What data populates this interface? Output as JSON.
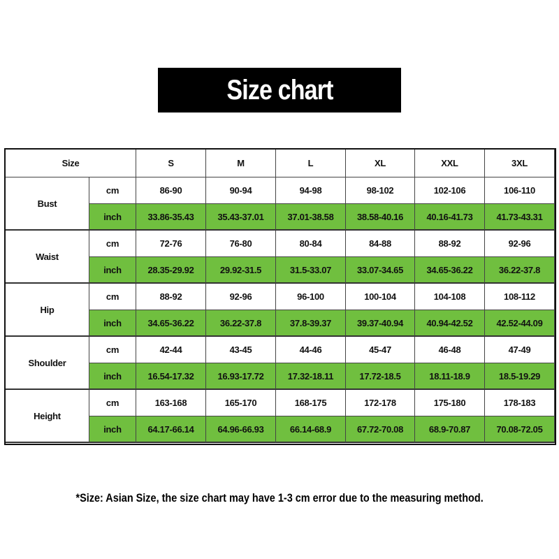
{
  "title": "Size chart",
  "header": {
    "size_label": "Size",
    "sizes": [
      "S",
      "M",
      "L",
      "XL",
      "XXL",
      "3XL"
    ]
  },
  "colors": {
    "inch_row_bg": "#70bf3f",
    "title_bg": "#000000"
  },
  "measurements": [
    {
      "name": "Bust",
      "cm": {
        "unit": "cm",
        "values": [
          "86-90",
          "90-94",
          "94-98",
          "98-102",
          "102-106",
          "106-110"
        ]
      },
      "inch": {
        "unit": "inch",
        "values": [
          "33.86-35.43",
          "35.43-37.01",
          "37.01-38.58",
          "38.58-40.16",
          "40.16-41.73",
          "41.73-43.31"
        ]
      }
    },
    {
      "name": "Waist",
      "cm": {
        "unit": "cm",
        "values": [
          "72-76",
          "76-80",
          "80-84",
          "84-88",
          "88-92",
          "92-96"
        ]
      },
      "inch": {
        "unit": "inch",
        "values": [
          "28.35-29.92",
          "29.92-31.5",
          "31.5-33.07",
          "33.07-34.65",
          "34.65-36.22",
          "36.22-37.8"
        ]
      }
    },
    {
      "name": "Hip",
      "cm": {
        "unit": "cm",
        "values": [
          "88-92",
          "92-96",
          "96-100",
          "100-104",
          "104-108",
          "108-112"
        ]
      },
      "inch": {
        "unit": "inch",
        "values": [
          "34.65-36.22",
          "36.22-37.8",
          "37.8-39.37",
          "39.37-40.94",
          "40.94-42.52",
          "42.52-44.09"
        ]
      }
    },
    {
      "name": "Shoulder",
      "cm": {
        "unit": "cm",
        "values": [
          "42-44",
          "43-45",
          "44-46",
          "45-47",
          "46-48",
          "47-49"
        ]
      },
      "inch": {
        "unit": "inch",
        "values": [
          "16.54-17.32",
          "16.93-17.72",
          "17.32-18.11",
          "17.72-18.5",
          "18.11-18.9",
          "18.5-19.29"
        ]
      }
    },
    {
      "name": "Height",
      "cm": {
        "unit": "cm",
        "values": [
          "163-168",
          "165-170",
          "168-175",
          "172-178",
          "175-180",
          "178-183"
        ]
      },
      "inch": {
        "unit": "inch",
        "values": [
          "64.17-66.14",
          "64.96-66.93",
          "66.14-68.9",
          "67.72-70.08",
          "68.9-70.87",
          "70.08-72.05"
        ]
      }
    }
  ],
  "footnote": "*Size: Asian Size, the size chart may have 1-3 cm error due to the measuring method."
}
